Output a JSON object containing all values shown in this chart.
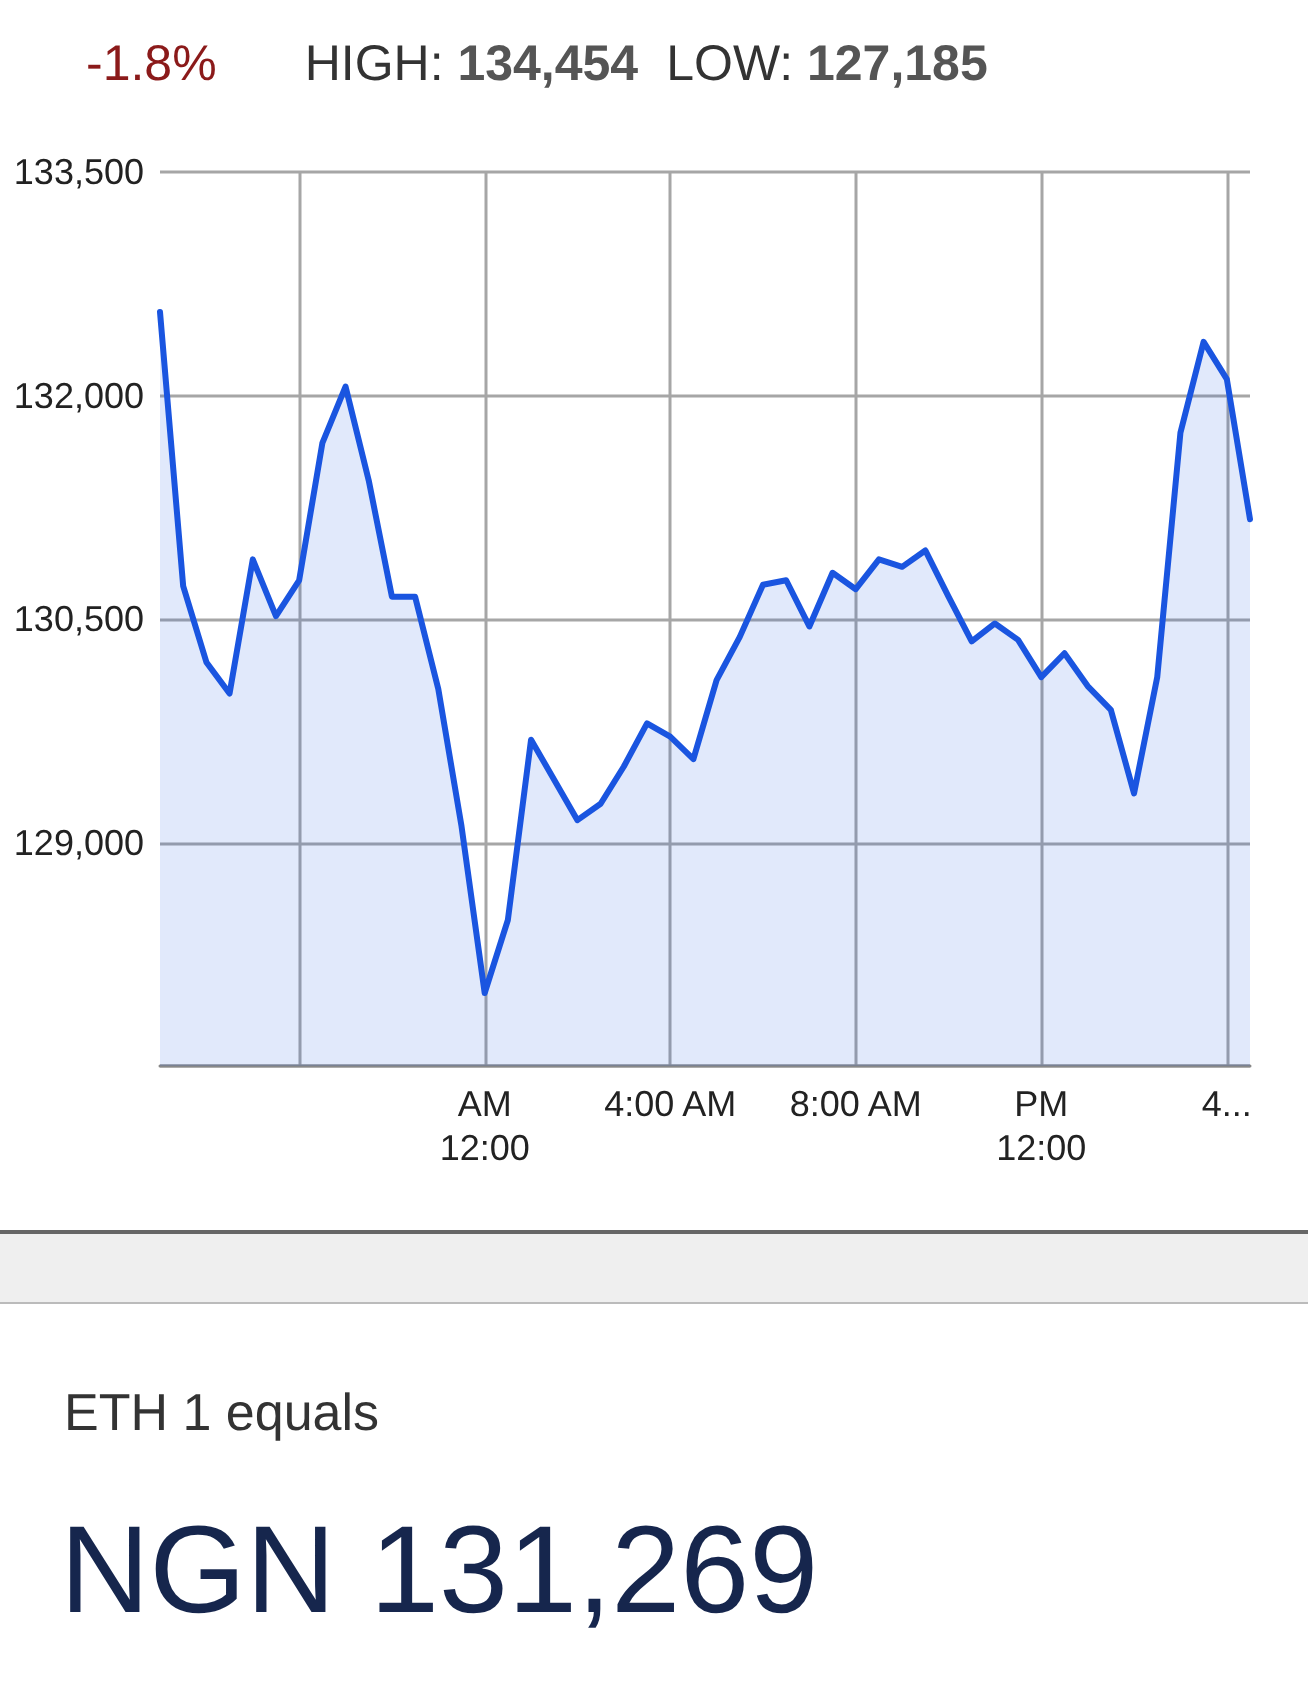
{
  "chart_data": {
    "type": "area",
    "title": "NGN 131,269",
    "subtitle": "ETH 1 equals",
    "annotations": [
      "-1.8%",
      "HIGH: 134,454",
      "LOW: 127,185"
    ],
    "x": [
      -7,
      -6.5,
      -6,
      -5.5,
      -5,
      -4.5,
      -4,
      -3.5,
      -3,
      -2.5,
      -2,
      -1.5,
      -1,
      -0.5,
      0,
      0.5,
      1,
      2,
      2.5,
      3,
      3.5,
      4,
      4.5,
      5,
      5.5,
      6,
      6.5,
      7,
      7.5,
      8,
      8.5,
      9,
      9.5,
      10,
      10.5,
      11,
      11.5,
      12,
      12.5,
      13,
      13.5,
      14,
      14.5,
      15,
      15.5,
      16,
      16.5
    ],
    "values": [
      132560,
      130720,
      130210,
      130000,
      130900,
      130520,
      130760,
      131680,
      132060,
      131430,
      130650,
      130650,
      130030,
      129110,
      127990,
      128480,
      129690,
      129150,
      129260,
      129510,
      129800,
      129710,
      129560,
      130090,
      130380,
      130730,
      130760,
      130450,
      130810,
      130700,
      130900,
      130850,
      130960,
      130650,
      130350,
      130470,
      130360,
      130110,
      130270,
      130050,
      129890,
      129330,
      130110,
      131750,
      132360,
      132110,
      131170
    ],
    "color": "#1a55e0",
    "xlim": [
      -7,
      16.5
    ],
    "xticks": [
      {
        "value": -4,
        "label": null
      },
      {
        "value": 0,
        "label": "AM\n12:00"
      },
      {
        "value": 4,
        "label": "4:00 AM"
      },
      {
        "value": 8,
        "label": "8:00 AM"
      },
      {
        "value": 12,
        "label": "PM\n12:00"
      },
      {
        "value": 16,
        "label": "4..."
      }
    ],
    "ylim": [
      127500,
      133500
    ],
    "yticks": [
      {
        "value": 127500,
        "label": null
      },
      {
        "value": 129000,
        "label": "129,000"
      },
      {
        "value": 130500,
        "label": "130,500"
      },
      {
        "value": 132000,
        "label": "132,000"
      },
      {
        "value": 133500,
        "label": "133,500"
      }
    ],
    "grid": true,
    "marker": "none"
  }
}
